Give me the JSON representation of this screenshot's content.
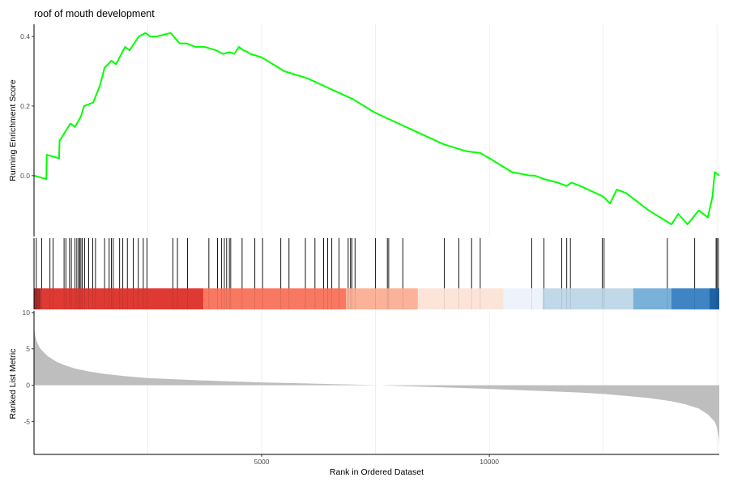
{
  "chart_data": {
    "type": "line",
    "title": "roof of mouth development",
    "xlabel": "Rank in Ordered Dataset",
    "panels": [
      {
        "id": "running-es",
        "ylabel": "Running Enrichment Score",
        "yticks": [
          0.0,
          0.2,
          0.4
        ],
        "ytick_labels": [
          "0.0",
          "0.2",
          "0.4"
        ],
        "ylim": [
          -0.175,
          0.435
        ],
        "series": [
          {
            "color": "#00ff00",
            "x": [
              0,
              270,
              280,
              550,
              560,
              800,
              900,
              1030,
              1100,
              1300,
              1450,
              1550,
              1700,
              1800,
              2000,
              2100,
              2300,
              2450,
              2550,
              2700,
              3000,
              3200,
              3350,
              3550,
              3750,
              4000,
              4150,
              4300,
              4400,
              4500,
              4600,
              4700,
              4750,
              5000,
              5500,
              6000,
              6500,
              7000,
              7500,
              8000,
              8500,
              9000,
              9500,
              9800,
              10000,
              10500,
              10900,
              11000,
              11200,
              11500,
              11700,
              11800,
              12000,
              12500,
              12650,
              12800,
              13000,
              13500,
              14000,
              14150,
              14350,
              14600,
              14800,
              14900,
              14950,
              15000,
              15050
            ],
            "y": [
              0.0,
              -0.01,
              0.06,
              0.05,
              0.1,
              0.15,
              0.14,
              0.17,
              0.2,
              0.21,
              0.26,
              0.31,
              0.33,
              0.32,
              0.37,
              0.36,
              0.4,
              0.41,
              0.4,
              0.4,
              0.41,
              0.38,
              0.38,
              0.37,
              0.37,
              0.36,
              0.35,
              0.355,
              0.35,
              0.37,
              0.36,
              0.355,
              0.35,
              0.34,
              0.3,
              0.28,
              0.25,
              0.22,
              0.18,
              0.15,
              0.12,
              0.09,
              0.07,
              0.065,
              0.05,
              0.01,
              0.0,
              0.0,
              -0.01,
              -0.02,
              -0.03,
              -0.02,
              -0.03,
              -0.06,
              -0.08,
              -0.04,
              -0.05,
              -0.1,
              -0.14,
              -0.11,
              -0.14,
              -0.1,
              -0.12,
              -0.06,
              0.01,
              0.005,
              0.0
            ]
          }
        ]
      },
      {
        "id": "gene-hits",
        "hit_positions": [
          50,
          170,
          350,
          420,
          660,
          700,
          780,
          820,
          900,
          940,
          980,
          1000,
          1030,
          1060,
          1110,
          1200,
          1290,
          1350,
          1550,
          1650,
          1700,
          1740,
          1880,
          1950,
          2050,
          2180,
          2290,
          2400,
          2480,
          3050,
          3150,
          3370,
          3840,
          4030,
          4120,
          4180,
          4230,
          4290,
          4320,
          4570,
          4850,
          5020,
          5420,
          5600,
          5960,
          6170,
          6360,
          6450,
          6540,
          6700,
          6900,
          6950,
          6980,
          7050,
          7500,
          7760,
          7790,
          8100,
          9010,
          9330,
          9610,
          9800,
          10930,
          11200,
          11590,
          11700,
          11780,
          12480,
          12520,
          13910,
          14510,
          14980,
          15000,
          15030
        ]
      },
      {
        "id": "rank-colorbar",
        "blocks": [
          {
            "x0": 0,
            "x1": 150,
            "color": "#a52a2a"
          },
          {
            "x0": 150,
            "x1": 3720,
            "color": "#de3a33"
          },
          {
            "x0": 3720,
            "x1": 6850,
            "color": "#f97861"
          },
          {
            "x0": 6850,
            "x1": 8430,
            "color": "#fcb299"
          },
          {
            "x0": 8430,
            "x1": 10310,
            "color": "#fde4d9"
          },
          {
            "x0": 10310,
            "x1": 11170,
            "color": "#eef3fb"
          },
          {
            "x0": 11170,
            "x1": 13160,
            "color": "#c0d8e8"
          },
          {
            "x0": 13160,
            "x1": 14000,
            "color": "#7ab1d8"
          },
          {
            "x0": 14000,
            "x1": 14830,
            "color": "#3f85c4"
          },
          {
            "x0": 14830,
            "x1": 15050,
            "color": "#1f63a6"
          }
        ]
      },
      {
        "id": "ranked-list",
        "ylabel": "Ranked List Metric",
        "yticks": [
          -5,
          0,
          5,
          10
        ],
        "ytick_labels": [
          "-5",
          "0",
          "5",
          "10"
        ],
        "ylim": [
          -9.5,
          10.2
        ],
        "series": [
          {
            "color": "#bebebe",
            "x": [
              0,
              20,
              60,
              120,
              200,
              300,
              400,
              500,
              700,
              900,
              1200,
              1500,
              2000,
              2500,
              3000,
              4000,
              5000,
              6000,
              7000,
              7600,
              8000,
              9000,
              10000,
              11000,
              12000,
              12500,
              13000,
              13500,
              14000,
              14300,
              14600,
              14800,
              14950,
              15000,
              15040,
              15050
            ],
            "y": [
              8.0,
              7.0,
              6.0,
              5.2,
              4.6,
              4.0,
              3.6,
              3.2,
              2.7,
              2.3,
              1.9,
              1.6,
              1.25,
              1.0,
              0.85,
              0.6,
              0.4,
              0.25,
              0.1,
              0.0,
              -0.1,
              -0.3,
              -0.5,
              -0.75,
              -1.0,
              -1.2,
              -1.45,
              -1.75,
              -2.2,
              -2.6,
              -3.2,
              -4.0,
              -5.0,
              -5.8,
              -7.2,
              -8.6
            ]
          }
        ]
      }
    ],
    "xticks": [
      5000,
      10000
    ],
    "xtick_labels": [
      "5000",
      "10000"
    ],
    "xlim": [
      0,
      15050
    ],
    "grid": true
  }
}
